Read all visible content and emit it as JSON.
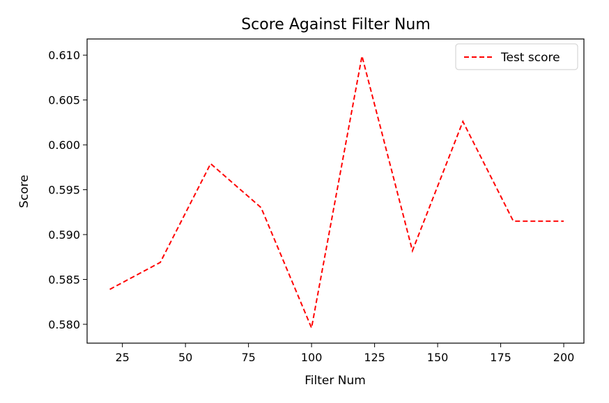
{
  "chart_data": {
    "type": "line",
    "title": "Score Against Filter Num",
    "xlabel": "Filter Num",
    "ylabel": "Score",
    "xlim": [
      11,
      208
    ],
    "ylim": [
      0.5779,
      0.6118
    ],
    "x_ticks": [
      25,
      50,
      75,
      100,
      125,
      150,
      175,
      200
    ],
    "y_ticks": [
      0.58,
      0.585,
      0.59,
      0.595,
      0.6,
      0.605,
      0.61
    ],
    "grid": false,
    "legend": "top-right",
    "series": [
      {
        "name": "Test score",
        "color": "#ff0000",
        "line_style": "dashed",
        "x": [
          20,
          40,
          60,
          80,
          100,
          120,
          140,
          160,
          180,
          200
        ],
        "y": [
          0.5839,
          0.5869,
          0.5979,
          0.593,
          0.5796,
          0.6099,
          0.5882,
          0.6026,
          0.5915,
          0.5915
        ]
      }
    ]
  }
}
